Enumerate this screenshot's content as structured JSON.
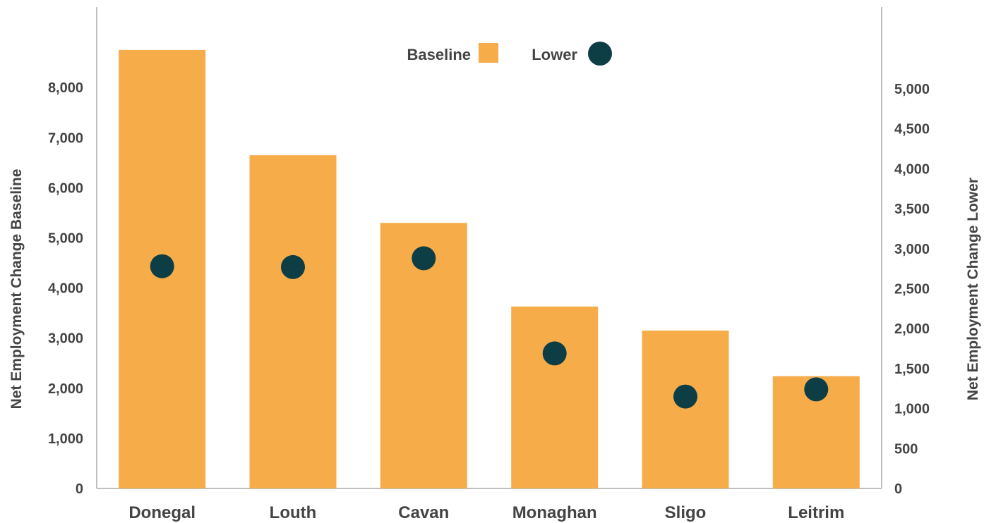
{
  "chart_data": {
    "type": "bar",
    "categories": [
      "Donegal",
      "Louth",
      "Cavan",
      "Monaghan",
      "Sligo",
      "Leitrim"
    ],
    "series": [
      {
        "name": "Baseline",
        "chart_type": "bar",
        "axis": "left",
        "color": "#F7AC4A",
        "values": [
          8750,
          6650,
          5300,
          3630,
          3150,
          2240
        ]
      },
      {
        "name": "Lower",
        "chart_type": "scatter",
        "axis": "right",
        "color": "#0D3D45",
        "values": [
          2780,
          2770,
          2880,
          1690,
          1150,
          1240
        ]
      }
    ],
    "ylabel": "Net Employment Change Baseline",
    "ylabel_right": "Net Employment Change Lower",
    "ylim": [
      0,
      9000
    ],
    "ylim_right": [
      0,
      5500
    ],
    "yticks": [
      "0",
      "1,000",
      "2,000",
      "3,000",
      "4,000",
      "5,000",
      "6,000",
      "7,000",
      "8,000"
    ],
    "yticks_values": [
      0,
      1000,
      2000,
      3000,
      4000,
      5000,
      6000,
      7000,
      8000
    ],
    "yticks_right": [
      "0",
      "500",
      "1,000",
      "1,500",
      "2,000",
      "2,500",
      "3,000",
      "3,500",
      "4,000",
      "4,500",
      "5,000"
    ],
    "yticks_right_values": [
      0,
      500,
      1000,
      1500,
      2000,
      2500,
      3000,
      3500,
      4000,
      4500,
      5000
    ],
    "grid": false,
    "legend": {
      "position": "top-center",
      "items": [
        "Baseline",
        "Lower"
      ]
    }
  }
}
